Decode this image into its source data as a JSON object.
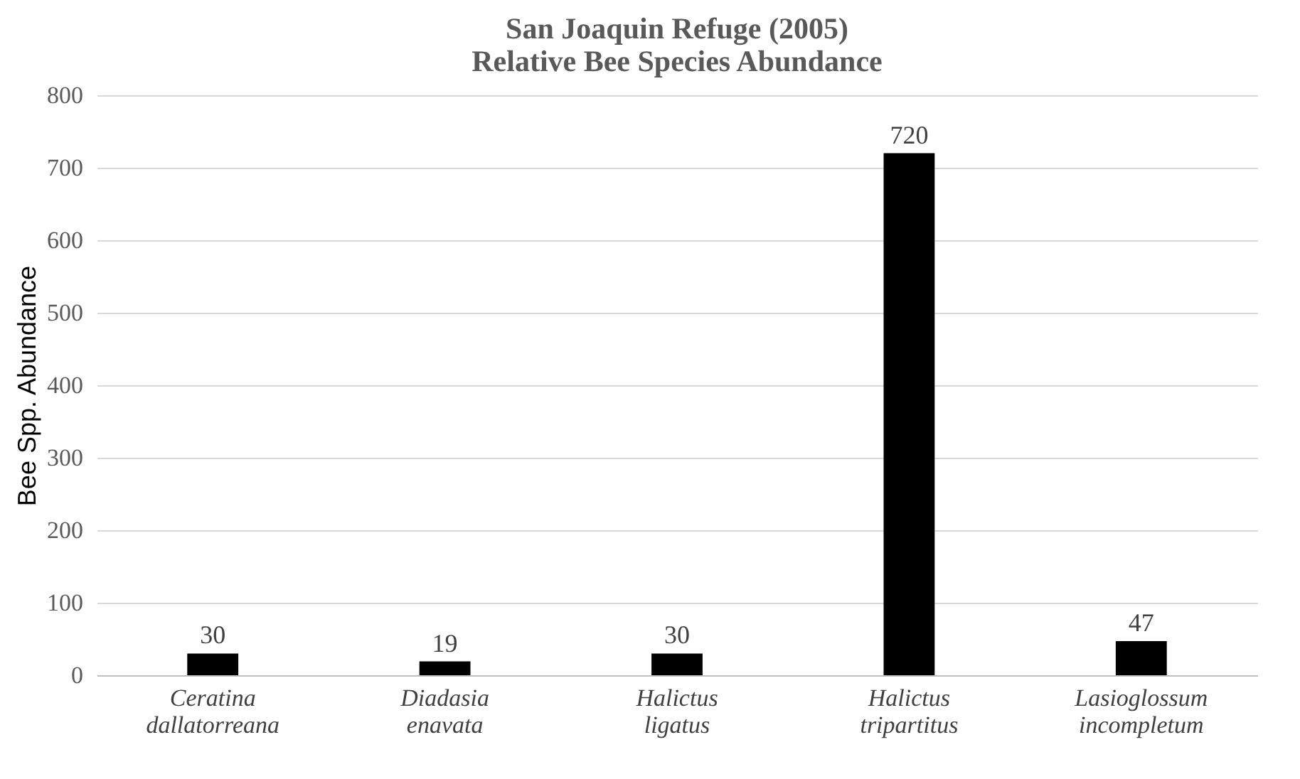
{
  "chart_data": {
    "type": "bar",
    "title": [
      "San Joaquin Refuge (2005)",
      "Relative Bee Species Abundance"
    ],
    "ylabel": "Bee Spp. Abundance",
    "categories": [
      "Ceratina dallatorreana",
      "Diadasia enavata",
      "Halictus ligatus",
      "Halictus tripartitus",
      "Lasioglossum incompletum"
    ],
    "values": [
      30,
      19,
      30,
      720,
      47
    ],
    "color": "#000000",
    "ylim": [
      0,
      800
    ],
    "yticks": [
      0,
      100,
      200,
      300,
      400,
      500,
      600,
      700,
      800
    ],
    "grid": "y",
    "data_labels": true
  }
}
